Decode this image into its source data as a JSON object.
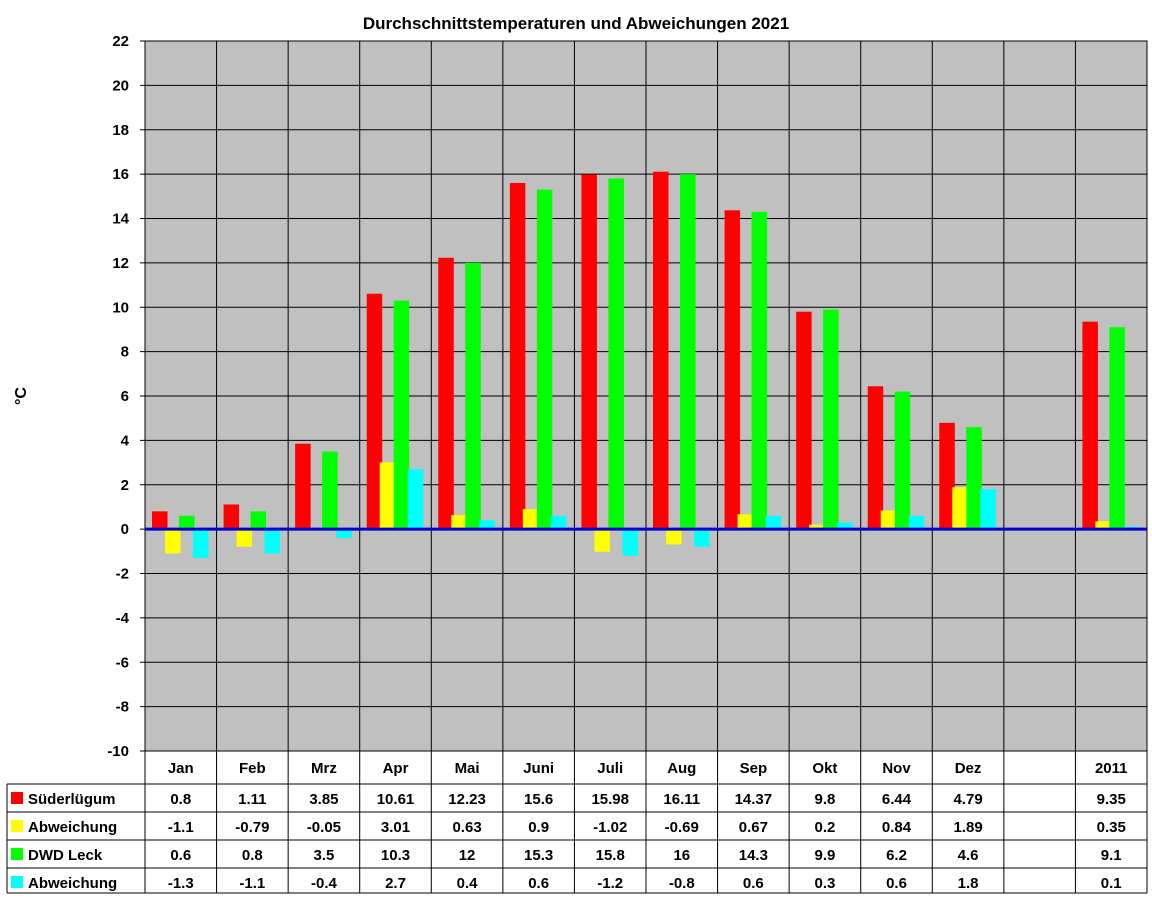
{
  "chart_data": {
    "type": "bar",
    "title": "Durchschnittstemperaturen und Abweichungen 2021",
    "ylabel": "°C",
    "ylim": [
      -10,
      22
    ],
    "yticks": [
      22,
      20,
      18,
      16,
      14,
      12,
      10,
      8,
      6,
      4,
      2,
      0,
      -2,
      -4,
      -6,
      -8,
      -10
    ],
    "grid": true,
    "legend": "data table below the chart",
    "categories": [
      "Jan",
      "Feb",
      "Mrz",
      "Apr",
      "Mai",
      "Juni",
      "Juli",
      "Aug",
      "Sep",
      "Okt",
      "Nov",
      "Dez",
      "",
      "2011"
    ],
    "series": [
      {
        "name": "Süderlügum",
        "color": "#ff0000",
        "values": [
          0.8,
          1.11,
          3.85,
          10.61,
          12.23,
          15.6,
          15.98,
          16.11,
          14.37,
          9.8,
          6.44,
          4.79,
          null,
          9.35
        ],
        "labels": [
          "0.8",
          "1.11",
          "3.85",
          "10.61",
          "12.23",
          "15.6",
          "15.98",
          "16.11",
          "14.37",
          "9.8",
          "6.44",
          "4.79",
          "",
          "9.35"
        ]
      },
      {
        "name": "Abweichung",
        "color": "#ffff00",
        "values": [
          -1.1,
          -0.79,
          -0.05,
          3.01,
          0.63,
          0.9,
          -1.02,
          -0.69,
          0.67,
          0.2,
          0.84,
          1.89,
          null,
          0.35
        ],
        "labels": [
          "-1.1",
          "-0.79",
          "-0.05",
          "3.01",
          "0.63",
          "0.9",
          "-1.02",
          "-0.69",
          "0.67",
          "0.2",
          "0.84",
          "1.89",
          "",
          "0.35"
        ]
      },
      {
        "name": "DWD Leck",
        "color": "#00ff00",
        "values": [
          0.6,
          0.8,
          3.5,
          10.3,
          12,
          15.3,
          15.8,
          16,
          14.3,
          9.9,
          6.2,
          4.6,
          null,
          9.1
        ],
        "labels": [
          "0.6",
          "0.8",
          "3.5",
          "10.3",
          "12",
          "15.3",
          "15.8",
          "16",
          "14.3",
          "9.9",
          "6.2",
          "4.6",
          "",
          "9.1"
        ]
      },
      {
        "name": "Abweichung",
        "color": "#00ffff",
        "values": [
          -1.3,
          -1.1,
          -0.4,
          2.7,
          0.4,
          0.6,
          -1.2,
          -0.8,
          0.6,
          0.3,
          0.6,
          1.8,
          null,
          0.1
        ],
        "labels": [
          "-1.3",
          "-1.1",
          "-0.4",
          "2.7",
          "0.4",
          "0.6",
          "-1.2",
          "-0.8",
          "0.6",
          "0.3",
          "0.6",
          "1.8",
          "",
          "0.1"
        ]
      }
    ],
    "colors": {
      "plot_bg": "#c0c0c0",
      "grid": "#000000",
      "zero_line": "#0000cc"
    }
  }
}
